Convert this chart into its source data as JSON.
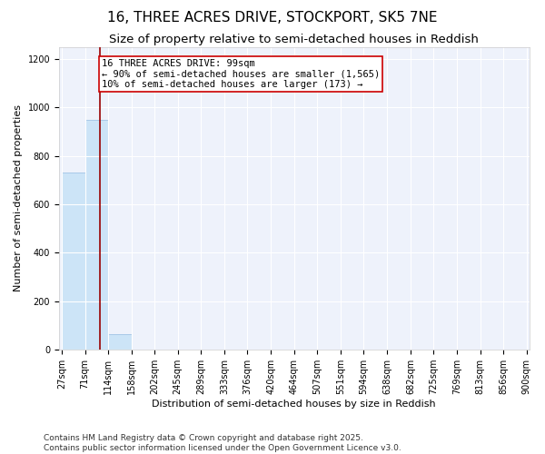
{
  "title": "16, THREE ACRES DRIVE, STOCKPORT, SK5 7NE",
  "subtitle": "Size of property relative to semi-detached houses in Reddish",
  "xlabel": "Distribution of semi-detached houses by size in Reddish",
  "ylabel": "Number of semi-detached properties",
  "bar_edges": [
    27,
    71,
    114,
    158,
    202,
    245,
    289,
    333,
    376,
    420,
    464,
    507,
    551,
    594,
    638,
    682,
    725,
    769,
    813,
    856,
    900
  ],
  "bar_heights": [
    730,
    950,
    65,
    0,
    0,
    0,
    0,
    0,
    0,
    0,
    0,
    0,
    0,
    0,
    0,
    0,
    0,
    0,
    0,
    0
  ],
  "bar_color": "#cce4f7",
  "bar_edgecolor": "#a8c8e8",
  "property_size": 99,
  "vline_color": "#990000",
  "annotation_text": "16 THREE ACRES DRIVE: 99sqm\n← 90% of semi-detached houses are smaller (1,565)\n10% of semi-detached houses are larger (173) →",
  "annotation_box_color": "#cc0000",
  "ylim": [
    0,
    1250
  ],
  "yticks": [
    0,
    200,
    400,
    600,
    800,
    1000,
    1200
  ],
  "background_color": "#eef2fb",
  "grid_color": "#ffffff",
  "footer_text": "Contains HM Land Registry data © Crown copyright and database right 2025.\nContains public sector information licensed under the Open Government Licence v3.0.",
  "title_fontsize": 11,
  "subtitle_fontsize": 9.5,
  "label_fontsize": 8,
  "tick_fontsize": 7,
  "annotation_fontsize": 7.5,
  "footer_fontsize": 6.5
}
